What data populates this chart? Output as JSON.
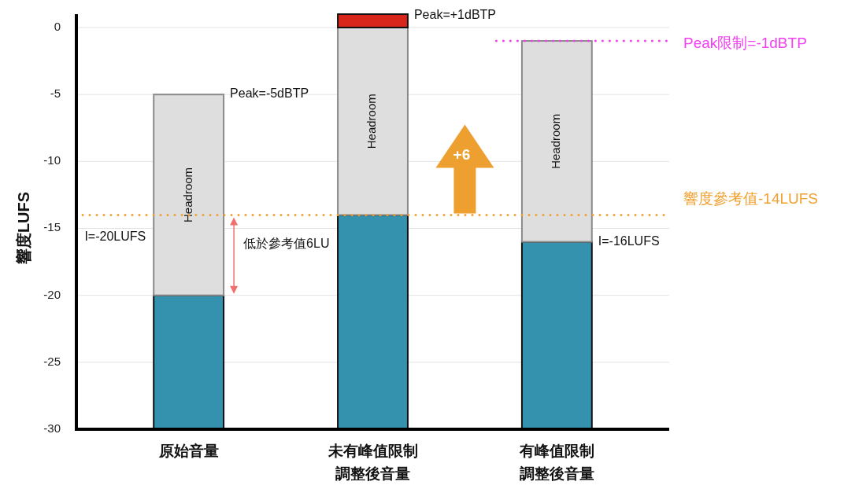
{
  "chart_data": {
    "type": "bar",
    "ylabel": "響度LUFS",
    "categories": [
      "原始音量",
      "未有峰值限制調整後音量",
      "有峰值限制調整後音量"
    ],
    "series": [
      {
        "color": "#3592ae",
        "base": [
          -30,
          -30,
          -30
        ],
        "values": [
          10,
          16,
          14
        ]
      },
      {
        "name": "Headroom",
        "color": "#dedede",
        "base": [
          -20,
          -14,
          -16
        ],
        "values": [
          15,
          14,
          15
        ]
      },
      {
        "color": "#d9261c",
        "base": [
          null,
          0,
          null
        ],
        "values": [
          null,
          1,
          null
        ]
      }
    ],
    "ylim": [
      -30,
      1
    ],
    "yticks": [
      -30,
      -25,
      -20,
      -15,
      -10,
      -5,
      0
    ],
    "grid": "y",
    "ref_lines": [
      {
        "axis": "y",
        "value": -14,
        "label": "響度參考值-14LUFS",
        "color": "#f0a030",
        "line_style": "dotted"
      },
      {
        "axis": "y",
        "value": -1,
        "label": "Peak限制=-1dBTP",
        "color": "#f040f0",
        "line_style": "dotted"
      }
    ],
    "annotations": [
      "Peak=-5dBTP",
      "I=-20LUFS",
      "低於參考值6LU",
      "Peak=+1dBTP",
      "+6",
      "I=-16LUFS"
    ]
  }
}
